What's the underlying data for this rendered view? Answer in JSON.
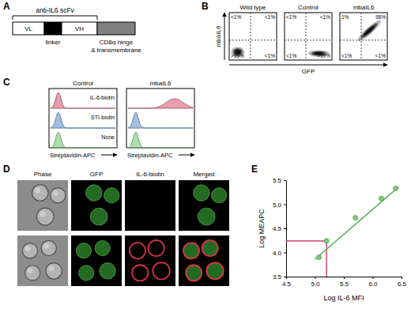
{
  "panel_labels": [
    "A",
    "B",
    "C",
    "D",
    "E"
  ],
  "construct": {
    "title": "anti-IL6 scFv",
    "segments": [
      {
        "label": "VL",
        "color": "#ffffff"
      },
      {
        "label": "linker",
        "color": "#000000"
      },
      {
        "label": "VH",
        "color": "#ffffff"
      },
      {
        "label": [
          "CD8α hinge",
          "& transmembrane"
        ],
        "color": "#808080"
      }
    ]
  },
  "flow": {
    "x_label": "GFP",
    "y_label": "mbaIL6",
    "plots": [
      {
        "title": "Wild type",
        "quadrants": [
          "<1%",
          "<1%",
          ">99%",
          "<1%"
        ]
      },
      {
        "title": "Control",
        "quadrants": [
          "<1%",
          "<1%",
          "<1%",
          ">99%"
        ]
      },
      {
        "title": "mbaIL6",
        "quadrants": [
          "1%",
          "98%",
          "<1%",
          "<1%"
        ]
      }
    ]
  },
  "histograms": {
    "x_label": "Streptavidin-APC",
    "panels": [
      "Control",
      "mbaIL6"
    ],
    "rows": [
      "IL-6-biotin",
      "STI-biotin",
      "None"
    ],
    "colors": [
      "#d0506e",
      "#5b86c5",
      "#6bbf6b"
    ]
  },
  "micrographs": {
    "columns": [
      "Phase",
      "GFP",
      "IL-6-biotin",
      "Merged"
    ]
  },
  "chart_data": {
    "type": "scatter",
    "x_label": "Log IL-6 MFI",
    "y_label": "Log MEAPC",
    "xlim": [
      4.5,
      6.5
    ],
    "xticks": [
      4.5,
      {
        "value": 5.0,
        "label": "5.0"
      },
      5.5,
      {
        "value": 6.0,
        "label": "6.0"
      },
      6.5
    ],
    "ylim": [
      3.5,
      5.5
    ],
    "yticks": [
      3.5,
      {
        "value": 4.0,
        "label": "4.0"
      },
      4.5,
      {
        "value": 5.0,
        "label": "5.0"
      },
      5.5
    ],
    "grid": false,
    "series": [
      {
        "type": "line",
        "color": "#4caf50",
        "line_style": "solid",
        "x": [
          5.0,
          6.45
        ],
        "values": [
          3.86,
          5.36
        ]
      },
      {
        "type": "scatter",
        "color": "#7ccf7c",
        "marker": "circle",
        "x": [
          5.07,
          5.2,
          5.7,
          6.15,
          6.4
        ],
        "values": [
          3.9,
          4.24,
          4.72,
          5.12,
          5.33
        ]
      }
    ],
    "annotations": [
      {
        "x": 5.2,
        "y": 4.24,
        "color": "#c2185b"
      }
    ]
  }
}
